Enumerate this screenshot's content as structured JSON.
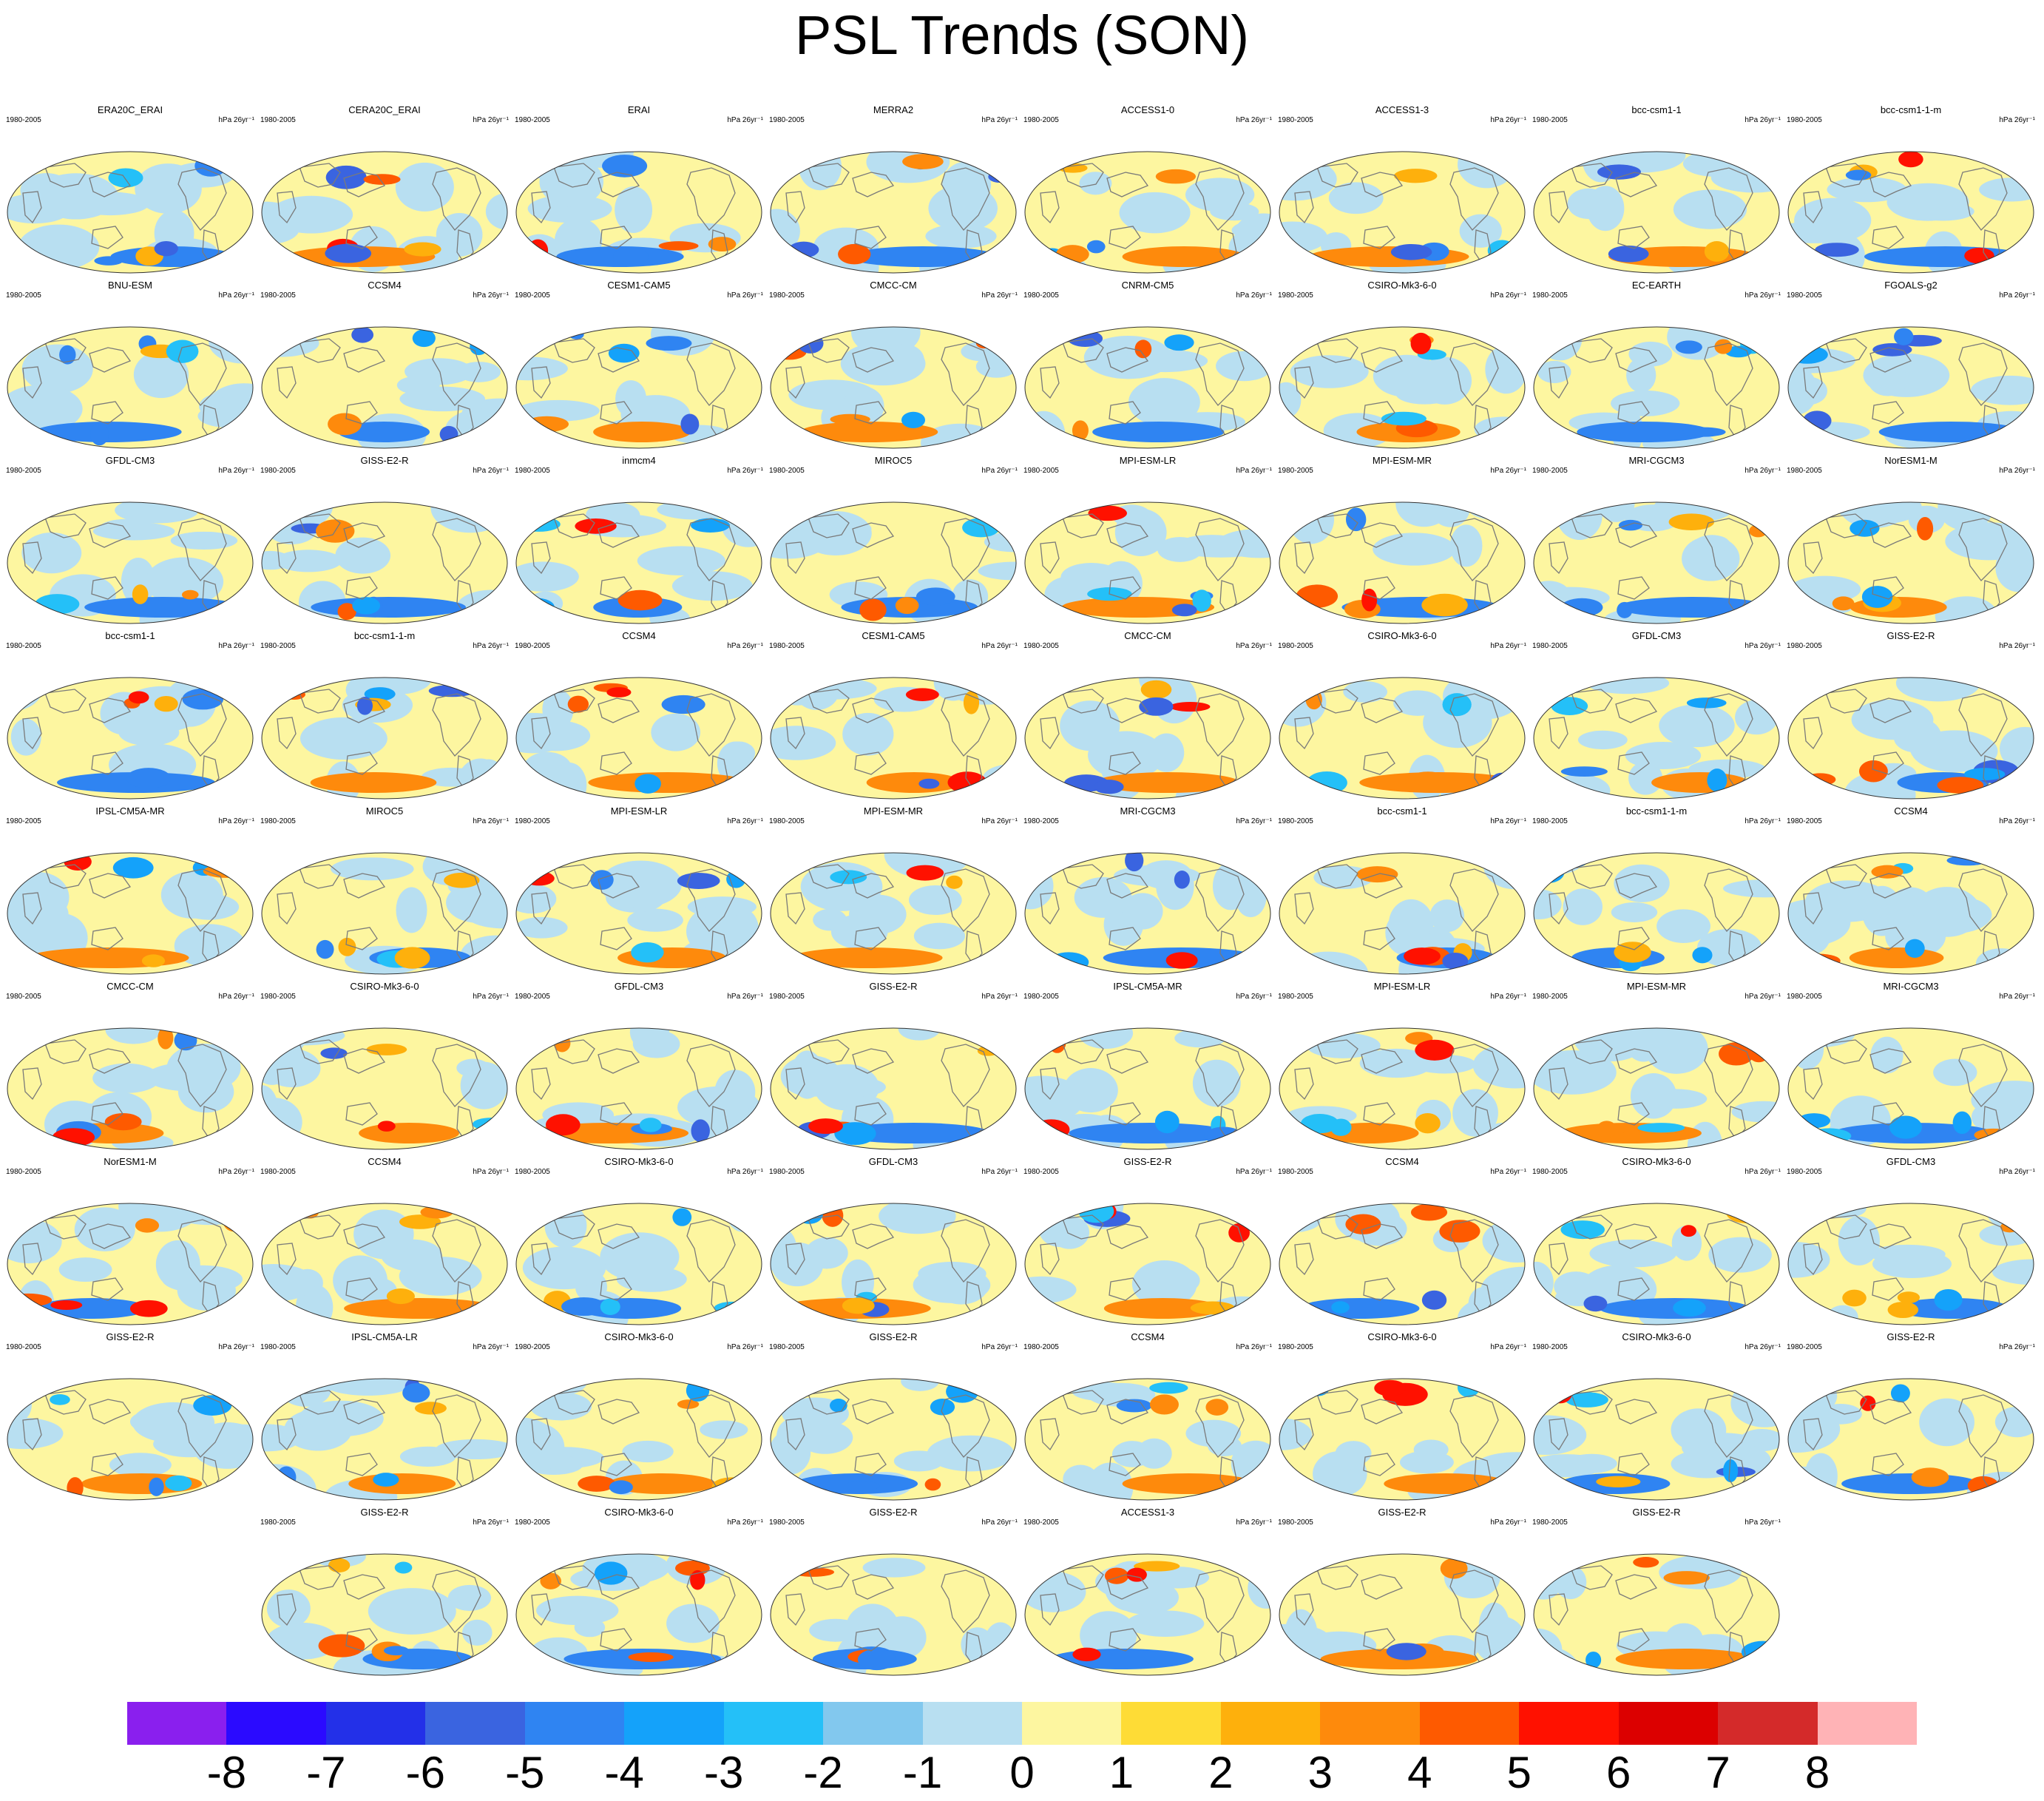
{
  "title": "PSL Trends (SON)",
  "chart_data": {
    "type": "heatmap",
    "title": "PSL Trends (SON)",
    "period": "1980-2005",
    "units": "hPa 26yr⁻¹",
    "colorbar": {
      "ticks": [
        "-8",
        "-7",
        "-6",
        "-5",
        "-4",
        "-3",
        "-2",
        "-1",
        "0",
        "1",
        "2",
        "3",
        "4",
        "5",
        "6",
        "7",
        "8"
      ],
      "colors": [
        "#8a1fee",
        "#2b0aff",
        "#2330e8",
        "#3a64e0",
        "#2f84f2",
        "#14a2fa",
        "#24c0f8",
        "#82c8ee",
        "#b8dff1",
        "#fdf6a0",
        "#fedc36",
        "#feb00c",
        "#fe8a0c",
        "#fe5a00",
        "#ff1100",
        "#dc0000",
        "#d42a2a",
        "#ffb3b6"
      ]
    },
    "panels": [
      {
        "name": "ERA20C_ERAI"
      },
      {
        "name": "CERA20C_ERAI"
      },
      {
        "name": "ERAI"
      },
      {
        "name": "MERRA2"
      },
      {
        "name": "ACCESS1-0"
      },
      {
        "name": "ACCESS1-3"
      },
      {
        "name": "bcc-csm1-1"
      },
      {
        "name": "bcc-csm1-1-m"
      },
      {
        "name": "BNU-ESM"
      },
      {
        "name": "CCSM4"
      },
      {
        "name": "CESM1-CAM5"
      },
      {
        "name": "CMCC-CM"
      },
      {
        "name": "CNRM-CM5"
      },
      {
        "name": "CSIRO-Mk3-6-0"
      },
      {
        "name": "EC-EARTH"
      },
      {
        "name": "FGOALS-g2"
      },
      {
        "name": "GFDL-CM3"
      },
      {
        "name": "GISS-E2-R"
      },
      {
        "name": "inmcm4"
      },
      {
        "name": "MIROC5"
      },
      {
        "name": "MPI-ESM-LR"
      },
      {
        "name": "MPI-ESM-MR"
      },
      {
        "name": "MRI-CGCM3"
      },
      {
        "name": "NorESM1-M"
      },
      {
        "name": "bcc-csm1-1"
      },
      {
        "name": "bcc-csm1-1-m"
      },
      {
        "name": "CCSM4"
      },
      {
        "name": "CESM1-CAM5"
      },
      {
        "name": "CMCC-CM"
      },
      {
        "name": "CSIRO-Mk3-6-0"
      },
      {
        "name": "GFDL-CM3"
      },
      {
        "name": "GISS-E2-R"
      },
      {
        "name": "IPSL-CM5A-MR"
      },
      {
        "name": "MIROC5"
      },
      {
        "name": "MPI-ESM-LR"
      },
      {
        "name": "MPI-ESM-MR"
      },
      {
        "name": "MRI-CGCM3"
      },
      {
        "name": "bcc-csm1-1"
      },
      {
        "name": "bcc-csm1-1-m"
      },
      {
        "name": "CCSM4"
      },
      {
        "name": "CMCC-CM"
      },
      {
        "name": "CSIRO-Mk3-6-0"
      },
      {
        "name": "GFDL-CM3"
      },
      {
        "name": "GISS-E2-R"
      },
      {
        "name": "IPSL-CM5A-MR"
      },
      {
        "name": "MPI-ESM-LR"
      },
      {
        "name": "MPI-ESM-MR"
      },
      {
        "name": "MRI-CGCM3"
      },
      {
        "name": "NorESM1-M"
      },
      {
        "name": "CCSM4"
      },
      {
        "name": "CSIRO-Mk3-6-0"
      },
      {
        "name": "GFDL-CM3"
      },
      {
        "name": "GISS-E2-R"
      },
      {
        "name": "CCSM4"
      },
      {
        "name": "CSIRO-Mk3-6-0"
      },
      {
        "name": "GFDL-CM3"
      },
      {
        "name": "GISS-E2-R"
      },
      {
        "name": "IPSL-CM5A-LR"
      },
      {
        "name": "CSIRO-Mk3-6-0"
      },
      {
        "name": "GISS-E2-R"
      },
      {
        "name": "CCSM4"
      },
      {
        "name": "CSIRO-Mk3-6-0"
      },
      {
        "name": "CSIRO-Mk3-6-0"
      },
      {
        "name": "GISS-E2-R"
      },
      {
        "name": "GISS-E2-R"
      },
      {
        "name": "CSIRO-Mk3-6-0"
      },
      {
        "name": "GISS-E2-R"
      },
      {
        "name": "ACCESS1-3"
      },
      {
        "name": "GISS-E2-R"
      },
      {
        "name": "GISS-E2-R"
      }
    ]
  }
}
